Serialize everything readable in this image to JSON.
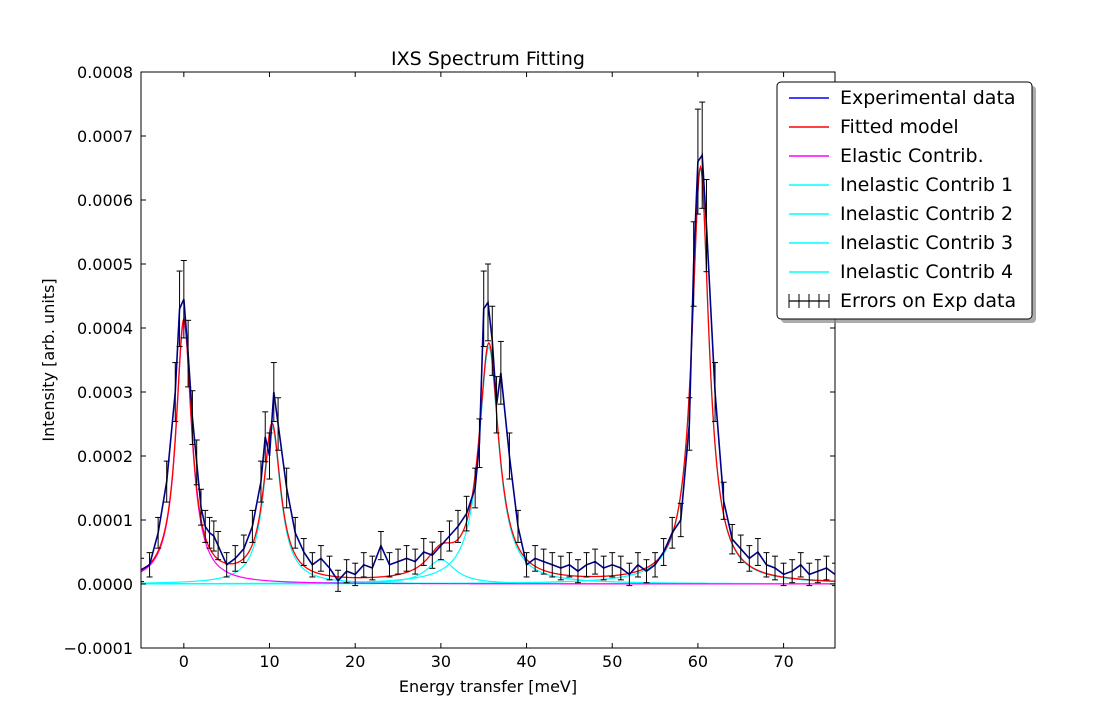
{
  "chart_data": {
    "type": "line",
    "title": "IXS Spectrum Fitting",
    "xlabel": "Energy transfer [meV]",
    "ylabel": "Intensity [arb. units]",
    "xlim": [
      -5,
      76
    ],
    "ylim": [
      -0.0001,
      0.0008
    ],
    "xticks": [
      0,
      10,
      20,
      30,
      40,
      50,
      60,
      70
    ],
    "xtick_labels": [
      "0",
      "10",
      "20",
      "30",
      "40",
      "50",
      "60",
      "70"
    ],
    "yticks": [
      -0.0001,
      0.0,
      0.0001,
      0.0002,
      0.0003,
      0.0004,
      0.0005,
      0.0006,
      0.0007,
      0.0008
    ],
    "ytick_labels": [
      "−0.0001",
      "0.0000",
      "0.0001",
      "0.0002",
      "0.0003",
      "0.0004",
      "0.0005",
      "0.0006",
      "0.0007",
      "0.0008"
    ],
    "grid": false,
    "legend_position": "top-right",
    "legend": [
      {
        "label": "Experimental data",
        "color": "#0000ff",
        "style": "line"
      },
      {
        "label": "Fitted model",
        "color": "#ff0000",
        "style": "line"
      },
      {
        "label": "Elastic Contrib.",
        "color": "#ff00ff",
        "style": "line"
      },
      {
        "label": "Inelastic Contrib 1",
        "color": "#00ffff",
        "style": "line"
      },
      {
        "label": "Inelastic Contrib 2",
        "color": "#00ffff",
        "style": "line"
      },
      {
        "label": "Inelastic Contrib 3",
        "color": "#00ffff",
        "style": "line"
      },
      {
        "label": "Inelastic Contrib 4",
        "color": "#00ffff",
        "style": "line"
      },
      {
        "label": "Errors on Exp data",
        "color": "#000000",
        "style": "errorbar"
      }
    ],
    "components": {
      "elastic": {
        "center": 0.0,
        "amplitude": 0.00041,
        "hwhm": 1.1,
        "color": "#ff00ff"
      },
      "inelastic": [
        {
          "center": 10.3,
          "amplitude": 0.000245,
          "hwhm": 1.2,
          "color": "#00ffff"
        },
        {
          "center": 30.0,
          "amplitude": 3.8e-05,
          "hwhm": 2.0,
          "color": "#00ffff"
        },
        {
          "center": 35.6,
          "amplitude": 0.00037,
          "hwhm": 1.4,
          "color": "#00ffff"
        },
        {
          "center": 60.3,
          "amplitude": 0.00065,
          "hwhm": 1.2,
          "color": "#00ffff"
        }
      ]
    },
    "fitted_color": "#ff0000",
    "experimental_color": "#00008b",
    "experimental_x": [
      -5,
      -4,
      -3,
      -2,
      -1,
      -0.5,
      0,
      0.5,
      1,
      1.5,
      2,
      2.5,
      3,
      3.5,
      4,
      5,
      6,
      7,
      8,
      9,
      9.5,
      10,
      10.5,
      11,
      12,
      13,
      14,
      15,
      16,
      17,
      18,
      19,
      20,
      21,
      22,
      23,
      24,
      25,
      26,
      27,
      28,
      29,
      30,
      31,
      32,
      33,
      34,
      34.5,
      35,
      35.5,
      36,
      36.5,
      37,
      38,
      39,
      40,
      41,
      42,
      43,
      44,
      45,
      46,
      47,
      48,
      49,
      50,
      51,
      52,
      53,
      54,
      55,
      56,
      57,
      58,
      59,
      59.5,
      60,
      60.5,
      61,
      62,
      63,
      64,
      65,
      66,
      67,
      68,
      69,
      70,
      71,
      72,
      73,
      74,
      75,
      76
    ],
    "experimental_y": [
      2.2e-05,
      3e-05,
      8e-05,
      0.00016,
      0.0003,
      0.00043,
      0.000445,
      0.00036,
      0.00026,
      0.00019,
      0.00012,
      9e-05,
      8e-05,
      7.5e-05,
      6e-05,
      3e-05,
      4e-05,
      5.5e-05,
      9e-05,
      0.00016,
      0.00023,
      0.0002,
      0.0003,
      0.00025,
      0.00015,
      8e-05,
      5e-05,
      3e-05,
      4e-05,
      2.5e-05,
      5e-06,
      2e-05,
      1.5e-05,
      3e-05,
      2.5e-05,
      6e-05,
      3e-05,
      3.5e-05,
      4e-05,
      3.5e-05,
      5e-05,
      4.5e-05,
      6e-05,
      7.5e-05,
      9e-05,
      0.00011,
      0.00015,
      0.00022,
      0.00043,
      0.00044,
      0.00038,
      0.00028,
      0.00033,
      0.0002,
      9e-05,
      3e-05,
      4e-05,
      3.5e-05,
      3e-05,
      2.5e-05,
      3e-05,
      2e-05,
      3e-05,
      3.5e-05,
      2.5e-05,
      3e-05,
      2.5e-05,
      1.5e-05,
      3e-05,
      2e-05,
      3e-05,
      5e-05,
      8e-05,
      0.0001,
      0.00025,
      0.0005,
      0.00066,
      0.00067,
      0.00056,
      0.0003,
      0.00013,
      7e-05,
      5.5e-05,
      4e-05,
      5e-05,
      3e-05,
      2.5e-05,
      1.5e-05,
      2e-05,
      3e-05,
      1.5e-05,
      2e-05,
      2.5e-05,
      1.5e-05,
      1e-05
    ],
    "error_sigma": 1.6e-05
  }
}
